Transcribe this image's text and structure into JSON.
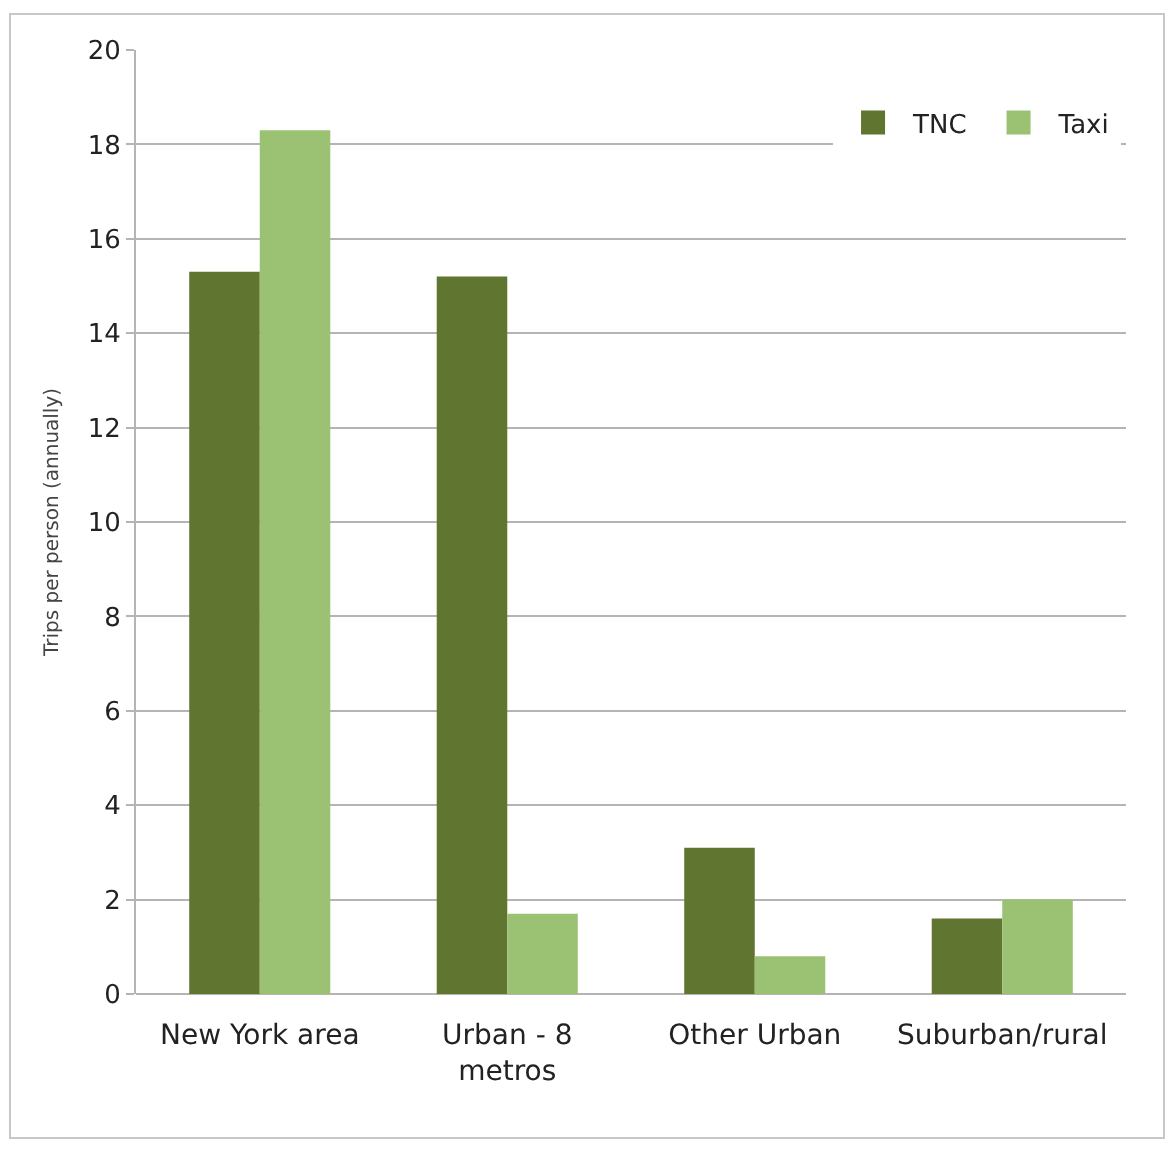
{
  "chart_data": {
    "type": "bar",
    "ylabel": "Trips per person (annually)",
    "categories": [
      "New York area",
      "Urban - 8\nmetros",
      "Other Urban",
      "Suburban/rural"
    ],
    "series": [
      {
        "name": "TNC",
        "color": "#5f7530",
        "values": [
          15.3,
          15.2,
          3.1,
          1.6
        ]
      },
      {
        "name": "Taxi",
        "color": "#9bc273",
        "values": [
          18.3,
          1.7,
          0.8,
          2.0
        ]
      }
    ],
    "ylim": [
      0,
      20
    ],
    "yticks": [
      0,
      2,
      4,
      6,
      8,
      10,
      12,
      14,
      16,
      18,
      20
    ],
    "grid": "y",
    "legend": "top right"
  }
}
